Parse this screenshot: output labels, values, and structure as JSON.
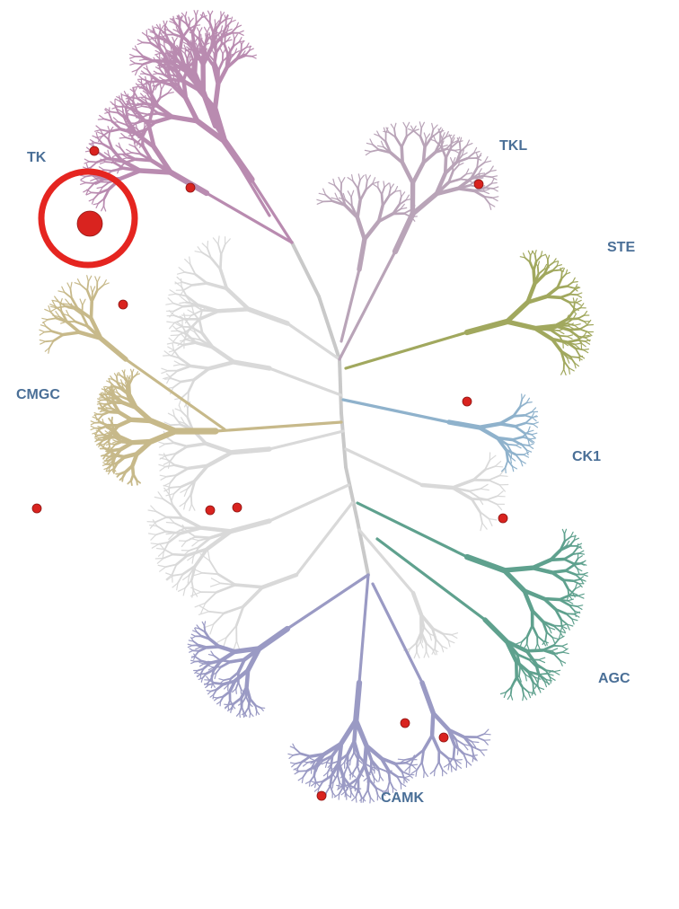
{
  "groups": {
    "tk": {
      "label": "TK",
      "color": "#b98bb0"
    },
    "tkl": {
      "label": "TKL",
      "color": "#b9a4b8"
    },
    "ste": {
      "label": "STE",
      "color": "#a1a85e"
    },
    "ck1": {
      "label": "CK1",
      "color": "#8fb2cc"
    },
    "agc": {
      "label": "AGC",
      "color": "#5fa18e"
    },
    "camk": {
      "label": "CAMK",
      "color": "#9a9ac4"
    },
    "cmgc": {
      "label": "CMGC",
      "color": "#c7b98a"
    },
    "other": {
      "label": "",
      "color": "#d9d9d9"
    }
  },
  "colors": {
    "label": "#4a6f97",
    "hit_marker": "#d9231f",
    "highlight_ring": "#e52520"
  }
}
